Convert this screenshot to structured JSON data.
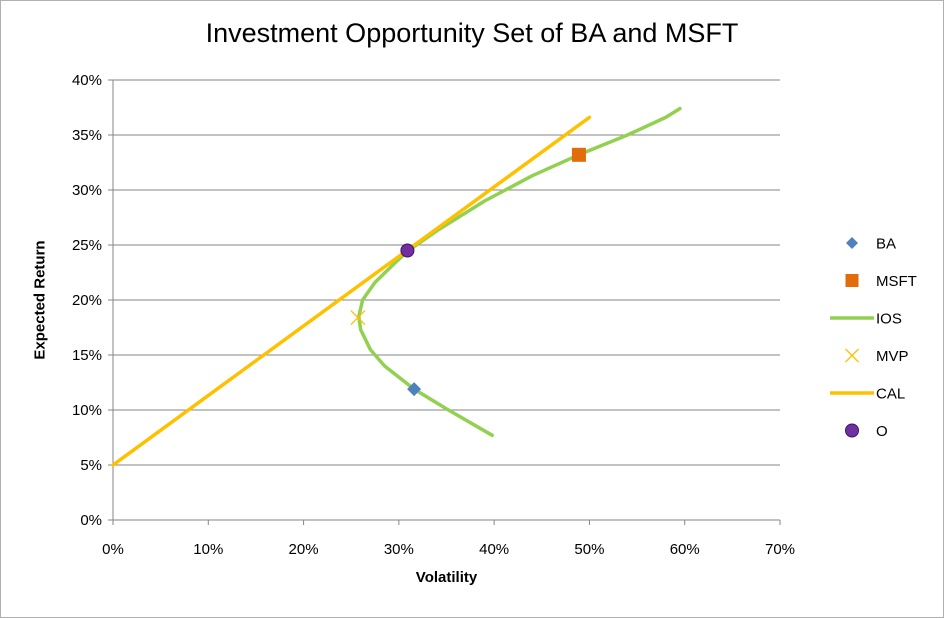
{
  "chart_data": {
    "type": "scatter",
    "title": "Investment Opportunity Set of BA and MSFT",
    "xlabel": "Volatility",
    "ylabel": "Expected Return",
    "xlim": [
      0,
      0.7
    ],
    "ylim": [
      0,
      0.4
    ],
    "x_ticks": [
      "0%",
      "10%",
      "20%",
      "30%",
      "40%",
      "50%",
      "60%",
      "70%"
    ],
    "y_ticks": [
      "0%",
      "5%",
      "10%",
      "15%",
      "20%",
      "25%",
      "30%",
      "35%",
      "40%"
    ],
    "grid": "horizontal",
    "legend_position": "right",
    "series": [
      {
        "name": "BA",
        "kind": "marker",
        "marker": "diamond",
        "color": "#4f81bd",
        "points": [
          [
            0.316,
            0.119
          ]
        ]
      },
      {
        "name": "MSFT",
        "kind": "marker",
        "marker": "square",
        "color": "#e36c0a",
        "points": [
          [
            0.489,
            0.332
          ]
        ]
      },
      {
        "name": "IOS",
        "kind": "line",
        "color": "#92d050",
        "points": [
          [
            0.398,
            0.077
          ],
          [
            0.35,
            0.101
          ],
          [
            0.316,
            0.119
          ],
          [
            0.285,
            0.14
          ],
          [
            0.27,
            0.155
          ],
          [
            0.26,
            0.173
          ],
          [
            0.258,
            0.185
          ],
          [
            0.262,
            0.2
          ],
          [
            0.275,
            0.216
          ],
          [
            0.295,
            0.233
          ],
          [
            0.31,
            0.245
          ],
          [
            0.34,
            0.263
          ],
          [
            0.39,
            0.29
          ],
          [
            0.44,
            0.313
          ],
          [
            0.489,
            0.332
          ],
          [
            0.54,
            0.35
          ],
          [
            0.58,
            0.366
          ],
          [
            0.595,
            0.374
          ]
        ]
      },
      {
        "name": "MVP",
        "kind": "marker",
        "marker": "x",
        "color": "#ffc000",
        "points": [
          [
            0.257,
            0.184
          ]
        ]
      },
      {
        "name": "CAL",
        "kind": "line",
        "color": "#ffc000",
        "points": [
          [
            0,
            0.05
          ],
          [
            0.5,
            0.366
          ]
        ]
      },
      {
        "name": "O",
        "kind": "marker",
        "marker": "circle",
        "color": "#7030a0",
        "points": [
          [
            0.309,
            0.245
          ]
        ]
      }
    ]
  }
}
